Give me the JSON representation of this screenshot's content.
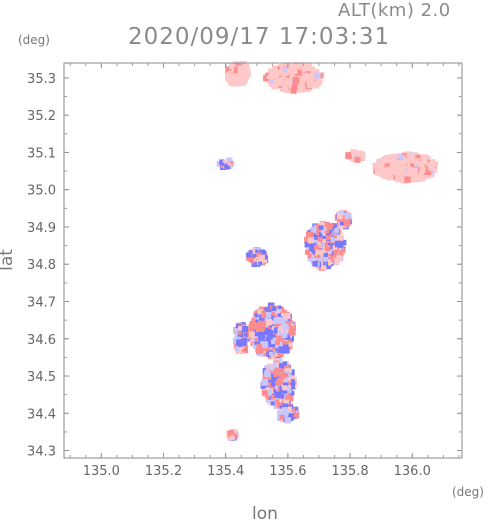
{
  "header": {
    "altitude_label": "ALT(km)  2.0",
    "timestamp": "2020/09/17 17:03:31"
  },
  "axes": {
    "x_label": "lon",
    "y_label": "lat",
    "x_unit": "(deg)",
    "y_unit": "(deg)",
    "x_ticks": [
      "135.0",
      "135.2",
      "135.4",
      "135.6",
      "135.8",
      "136.0"
    ],
    "y_ticks": [
      "34.3",
      "34.4",
      "34.5",
      "34.6",
      "34.7",
      "34.8",
      "34.9",
      "35.0",
      "35.1",
      "35.2",
      "35.3"
    ],
    "x_range": [
      134.88,
      136.16
    ],
    "y_range": [
      34.28,
      35.34
    ]
  },
  "colors": {
    "positive": "#ff8c8c",
    "positive_light": "#ffc8c8",
    "negative": "#7878ff",
    "negative_light": "#c8c8ff",
    "frame": "#8a8a8a"
  },
  "echo_regions": [
    {
      "lon": 135.62,
      "lat": 35.3,
      "rlon": 0.09,
      "rlat": 0.035,
      "kind": "pos_light"
    },
    {
      "lon": 135.44,
      "lat": 35.31,
      "rlon": 0.035,
      "rlat": 0.03,
      "kind": "pos_light"
    },
    {
      "lon": 135.98,
      "lat": 35.06,
      "rlon": 0.1,
      "rlat": 0.035,
      "kind": "pos_light"
    },
    {
      "lon": 135.82,
      "lat": 35.09,
      "rlon": 0.025,
      "rlat": 0.01,
      "kind": "pos_light"
    },
    {
      "lon": 135.55,
      "lat": 34.62,
      "rlon": 0.07,
      "rlat": 0.07,
      "kind": "mixed"
    },
    {
      "lon": 135.57,
      "lat": 34.48,
      "rlon": 0.05,
      "rlat": 0.06,
      "kind": "mixed"
    },
    {
      "lon": 135.72,
      "lat": 34.85,
      "rlon": 0.06,
      "rlat": 0.06,
      "kind": "mixed"
    },
    {
      "lon": 135.6,
      "lat": 34.4,
      "rlon": 0.03,
      "rlat": 0.02,
      "kind": "mixed"
    },
    {
      "lon": 135.45,
      "lat": 34.6,
      "rlon": 0.02,
      "rlat": 0.04,
      "kind": "mixed"
    },
    {
      "lon": 135.78,
      "lat": 34.92,
      "rlon": 0.02,
      "rlat": 0.02,
      "kind": "mixed"
    },
    {
      "lon": 135.4,
      "lat": 35.07,
      "rlon": 0.02,
      "rlat": 0.01,
      "kind": "mixed"
    },
    {
      "lon": 135.42,
      "lat": 34.34,
      "rlon": 0.015,
      "rlat": 0.01,
      "kind": "mixed"
    },
    {
      "lon": 135.5,
      "lat": 34.82,
      "rlon": 0.03,
      "rlat": 0.02,
      "kind": "mixed"
    }
  ]
}
